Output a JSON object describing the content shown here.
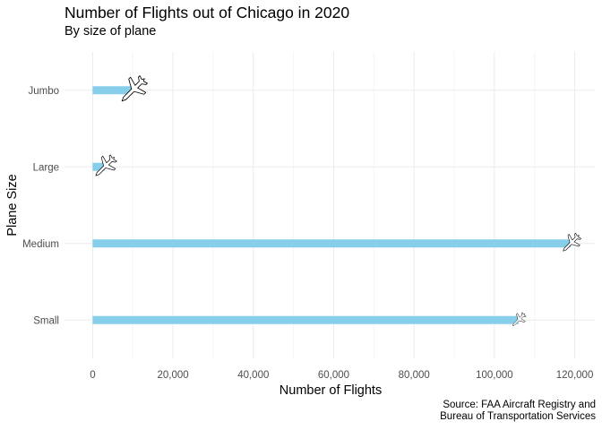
{
  "chart_data": {
    "type": "bar",
    "orientation": "horizontal",
    "title": "Number of Flights out of Chicago in 2020",
    "subtitle": "By size of plane",
    "xlabel": "Number of Flights",
    "ylabel": "Plane Size",
    "categories": [
      "Jumbo",
      "Large",
      "Medium",
      "Small"
    ],
    "values": [
      10000,
      3000,
      119000,
      106000
    ],
    "xlim": [
      -7000,
      125000
    ],
    "x_ticks": [
      0,
      20000,
      40000,
      60000,
      80000,
      100000,
      120000
    ],
    "x_tick_labels": [
      "0",
      "20,000",
      "40,000",
      "60,000",
      "80,000",
      "100,000",
      "120,000"
    ],
    "bar_color": "#87CEEB",
    "marker_icon": "airplane-icon",
    "grid": true,
    "caption": [
      "Source: FAA Aircraft Registry and",
      "Bureau of Transportation Services"
    ]
  }
}
